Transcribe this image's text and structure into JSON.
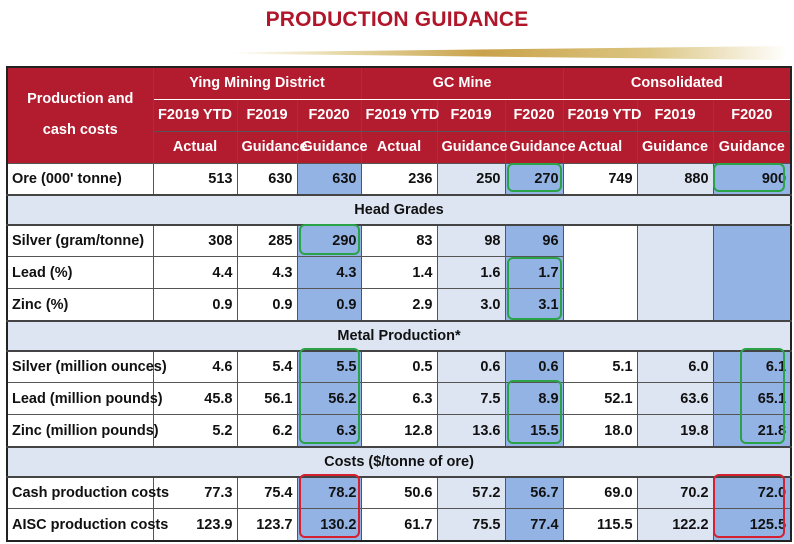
{
  "title": "PRODUCTION GUIDANCE",
  "header": {
    "row_label_line1": "Production and",
    "row_label_line2": "cash costs",
    "groups": [
      "Ying Mining District",
      "GC Mine",
      "Consolidated"
    ],
    "columns": [
      {
        "line1": "F2019 YTD",
        "line2": "Actual"
      },
      {
        "line1": "F2019",
        "line2": "Guidance"
      },
      {
        "line1": "F2020",
        "line2": "Guidance"
      },
      {
        "line1": "F2019 YTD",
        "line2": "Actual"
      },
      {
        "line1": "F2019",
        "line2": "Guidance"
      },
      {
        "line1": "F2020",
        "line2": "Guidance"
      },
      {
        "line1": "F2019 YTD",
        "line2": "Actual"
      },
      {
        "line1": "F2019",
        "line2": "Guidance"
      },
      {
        "line1": "F2020",
        "line2": "Guidance"
      }
    ]
  },
  "sections": {
    "head_grades": "Head Grades",
    "metal_production": "Metal Production*",
    "costs": "Costs ($/tonne of ore)"
  },
  "rows": {
    "ore": {
      "label": "Ore (000' tonne)",
      "values": [
        "513",
        "630",
        "630",
        "236",
        "250",
        "270",
        "749",
        "880",
        "900"
      ]
    },
    "silver_grade": {
      "label": "Silver (gram/tonne)",
      "values": [
        "308",
        "285",
        "290",
        "83",
        "98",
        "96",
        "",
        "",
        ""
      ]
    },
    "lead_grade": {
      "label": "Lead  (%)",
      "values": [
        "4.4",
        "4.3",
        "4.3",
        "1.4",
        "1.6",
        "1.7",
        "",
        "",
        ""
      ]
    },
    "zinc_grade": {
      "label": "Zinc   (%)",
      "values": [
        "0.9",
        "0.9",
        "0.9",
        "2.9",
        "3.0",
        "3.1",
        "",
        "",
        ""
      ]
    },
    "silver_prod": {
      "label": "Silver (million ounces)",
      "values": [
        "4.6",
        "5.4",
        "5.5",
        "0.5",
        "0.6",
        "0.6",
        "5.1",
        "6.0",
        "6.1"
      ]
    },
    "lead_prod": {
      "label": "Lead  (million pounds)",
      "values": [
        "45.8",
        "56.1",
        "56.2",
        "6.3",
        "7.5",
        "8.9",
        "52.1",
        "63.6",
        "65.1"
      ]
    },
    "zinc_prod": {
      "label": "Zinc    (million pounds)",
      "values": [
        "5.2",
        "6.2",
        "6.3",
        "12.8",
        "13.6",
        "15.5",
        "18.0",
        "19.8",
        "21.8"
      ]
    },
    "cash_cost": {
      "label": "Cash production costs",
      "values": [
        "77.3",
        "75.4",
        "78.2",
        "50.6",
        "57.2",
        "56.7",
        "69.0",
        "70.2",
        "72.0"
      ]
    },
    "aisc_cost": {
      "label": "AISC production costs",
      "values": [
        "123.9",
        "123.7",
        "130.2",
        "61.7",
        "75.5",
        "77.4",
        "115.5",
        "122.2",
        "125.5"
      ]
    }
  },
  "colors": {
    "header_red": "#b31b2e",
    "title_red": "#b0152a",
    "light_blue": "#dde4f2",
    "medium_blue": "#93b3e5",
    "highlight_green": "#2aa348",
    "highlight_red": "#d4202f"
  }
}
